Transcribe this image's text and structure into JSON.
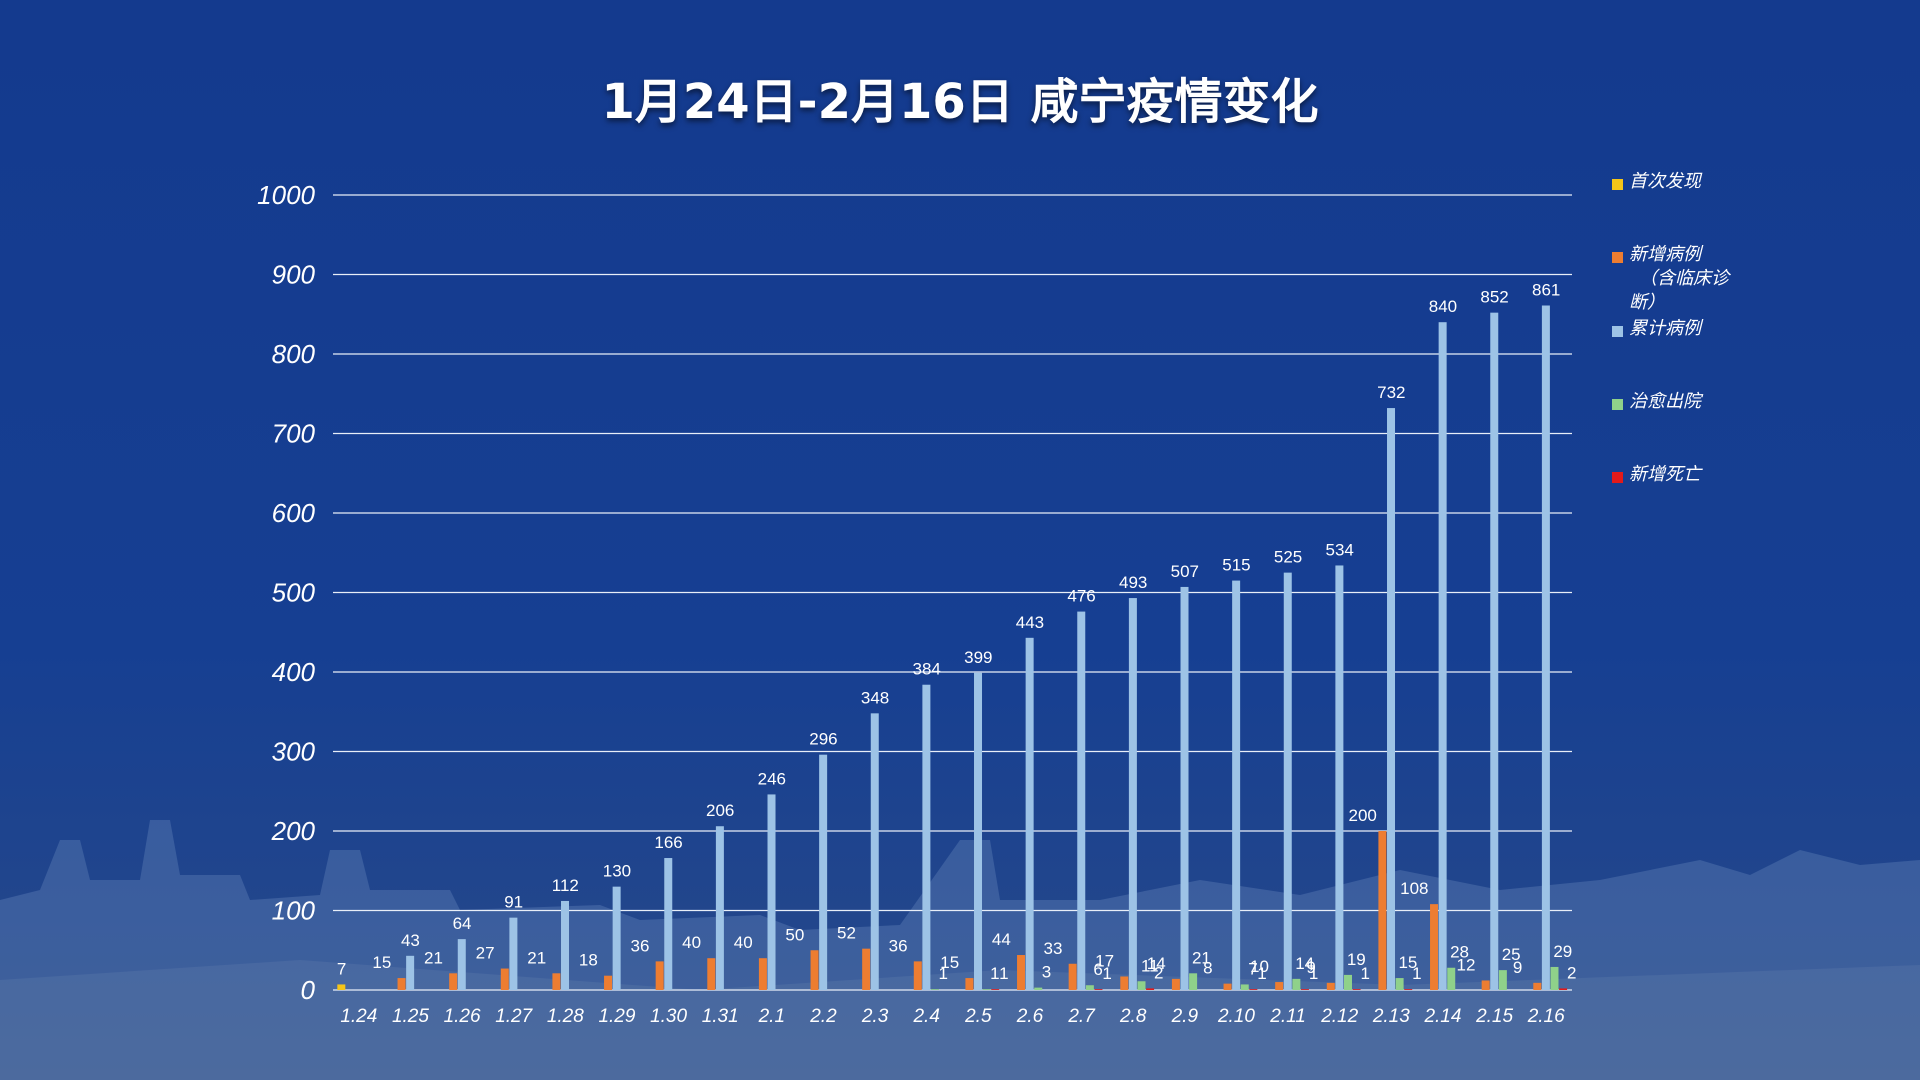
{
  "chart_data": {
    "type": "bar",
    "title": "1月24日-2月16日 咸宁疫情变化",
    "xlabel": "",
    "ylabel": "",
    "ylim": [
      0,
      1000
    ],
    "yticks": [
      "0",
      "100",
      "200",
      "300",
      "400",
      "500",
      "600",
      "700",
      "800",
      "900",
      "1000"
    ],
    "grid": true,
    "legend_position": "right",
    "categories": [
      "1.24",
      "1.25",
      "1.26",
      "1.27",
      "1.28",
      "1.29",
      "1.30",
      "1.31",
      "2.1",
      "2.2",
      "2.3",
      "2.4",
      "2.5",
      "2.6",
      "2.7",
      "2.8",
      "2.9",
      "2.10",
      "2.11",
      "2.12",
      "2.13",
      "2.14",
      "2.15",
      "2.16"
    ],
    "series": [
      {
        "name": "首次发现",
        "color": "#f5c518",
        "values": [
          7,
          null,
          null,
          null,
          null,
          null,
          null,
          null,
          null,
          null,
          null,
          null,
          null,
          null,
          null,
          null,
          null,
          null,
          null,
          null,
          null,
          null,
          null,
          null
        ]
      },
      {
        "name": "新增病例（含临床诊断）",
        "color": "#ed7d31",
        "values": [
          null,
          15,
          21,
          27,
          21,
          18,
          36,
          40,
          40,
          50,
          52,
          36,
          15,
          44,
          33,
          17,
          14,
          8,
          10,
          9,
          200,
          108,
          12,
          9
        ]
      },
      {
        "name": "累计病例",
        "color": "#9dc3e6",
        "values": [
          null,
          43,
          64,
          91,
          112,
          130,
          166,
          206,
          246,
          296,
          348,
          384,
          399,
          443,
          476,
          493,
          507,
          515,
          525,
          534,
          732,
          840,
          852,
          861
        ]
      },
      {
        "name": "治愈出院",
        "color": "#8fd18a",
        "values": [
          null,
          null,
          null,
          null,
          null,
          null,
          null,
          null,
          null,
          null,
          null,
          1,
          1,
          3,
          6,
          11,
          21,
          7,
          14,
          19,
          15,
          28,
          25,
          29
        ]
      },
      {
        "name": "新增死亡",
        "color": "#e21a1a",
        "values": [
          null,
          null,
          null,
          null,
          null,
          null,
          null,
          null,
          null,
          null,
          null,
          null,
          1,
          null,
          1,
          2,
          null,
          1,
          1,
          1,
          1,
          null,
          null,
          2
        ]
      }
    ]
  },
  "legend": [
    {
      "label": "首次发现",
      "color": "#f5c518"
    },
    {
      "label": "新增病例\n（含临床诊\n断）",
      "color": "#ed7d31"
    },
    {
      "label": "累计病例",
      "color": "#9dc3e6"
    },
    {
      "label": "治愈出院",
      "color": "#8fd18a"
    },
    {
      "label": "新增死亡",
      "color": "#e21a1a"
    }
  ]
}
